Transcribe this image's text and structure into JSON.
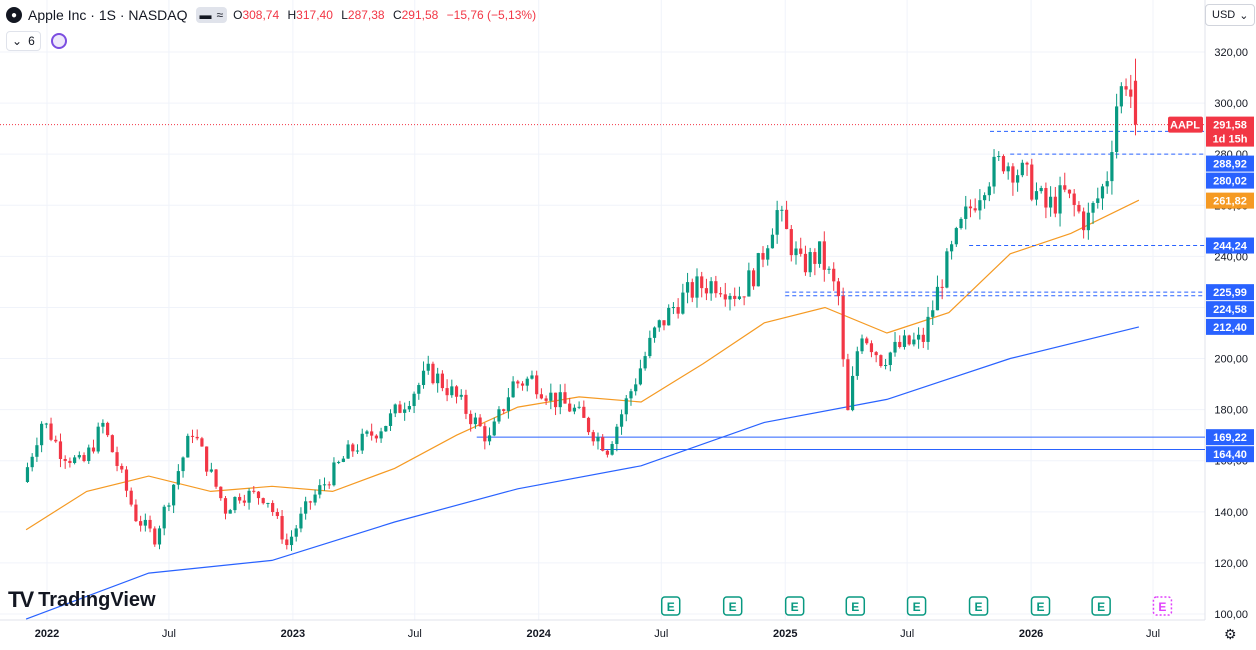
{
  "header": {
    "logo_icon": "apple-logo-icon",
    "symbol_line": "Apple Inc · 1S · NASDAQ",
    "open_label": "O",
    "open_value": "308,74",
    "high_label": "H",
    "high_value": "317,40",
    "low_label": "L",
    "low_value": "287,38",
    "close_label": "C",
    "close_value": "291,58",
    "change": "−15,76 (−5,13%)"
  },
  "toolbar": {
    "indicator_count": "6",
    "currency": "USD"
  },
  "brand": {
    "name": "TradingView"
  },
  "colors": {
    "up": "#089981",
    "down": "#f23645",
    "ma50": "#f59a23",
    "ma200": "#2962ff",
    "level": "#2962ff"
  },
  "chart_data": {
    "type": "candlestick",
    "y_axis": {
      "min": 100,
      "max": 320,
      "ticks": [
        "100,00",
        "120,00",
        "140,00",
        "160,00",
        "180,00",
        "200,00",
        "220,00",
        "240,00",
        "260,00",
        "280,00",
        "300,00",
        "320,00"
      ]
    },
    "x_axis": {
      "ticks": [
        "2022",
        "Jul",
        "2023",
        "Jul",
        "2024",
        "Jul",
        "2025",
        "Jul",
        "2026",
        "Jul"
      ],
      "start": "2022-01-01",
      "end": "2026-08-31"
    },
    "price_path": [
      [
        "2021-12-01",
        150
      ],
      [
        "2022-01-01",
        176
      ],
      [
        "2022-01-28",
        164
      ],
      [
        "2022-03-01",
        158
      ],
      [
        "2022-04-01",
        174
      ],
      [
        "2022-05-20",
        138
      ],
      [
        "2022-06-17",
        130
      ],
      [
        "2022-08-12",
        172
      ],
      [
        "2022-09-30",
        141
      ],
      [
        "2022-10-21",
        147
      ],
      [
        "2022-11-30",
        146
      ],
      [
        "2022-12-30",
        127
      ],
      [
        "2023-01-31",
        143
      ],
      [
        "2023-03-31",
        163
      ],
      [
        "2023-05-31",
        176
      ],
      [
        "2023-07-31",
        195
      ],
      [
        "2023-08-31",
        187
      ],
      [
        "2023-10-27",
        168
      ],
      [
        "2023-11-30",
        190
      ],
      [
        "2023-12-29",
        192
      ],
      [
        "2024-01-31",
        184
      ],
      [
        "2024-02-29",
        180
      ],
      [
        "2024-03-29",
        171
      ],
      [
        "2024-04-19",
        165
      ],
      [
        "2024-05-31",
        192
      ],
      [
        "2024-06-28",
        210
      ],
      [
        "2024-07-31",
        222
      ],
      [
        "2024-08-30",
        228
      ],
      [
        "2024-09-30",
        230
      ],
      [
        "2024-10-31",
        225
      ],
      [
        "2024-11-29",
        236
      ],
      [
        "2024-12-26",
        258
      ],
      [
        "2025-01-31",
        236
      ],
      [
        "2025-02-28",
        241
      ],
      [
        "2025-03-31",
        222
      ],
      [
        "2025-04-08",
        173
      ],
      [
        "2025-04-30",
        212
      ],
      [
        "2025-05-30",
        200
      ],
      [
        "2025-06-30",
        205
      ],
      [
        "2025-07-31",
        207
      ],
      [
        "2025-08-29",
        232
      ],
      [
        "2025-09-30",
        254
      ],
      [
        "2025-10-31",
        270
      ],
      [
        "2025-11-28",
        278
      ],
      [
        "2025-12-31",
        271
      ],
      [
        "2026-01-30",
        259
      ],
      [
        "2026-02-27",
        264
      ],
      [
        "2026-03-31",
        253
      ],
      [
        "2026-04-30",
        270
      ],
      [
        "2026-05-15",
        300
      ],
      [
        "2026-06-01",
        312
      ],
      [
        "2026-06-10",
        291.58
      ]
    ],
    "series": [
      {
        "name": "AAPL",
        "last_value": "291,58",
        "countdown": "1d 15h"
      },
      {
        "ma50_path": [
          [
            "2021-12-01",
            133
          ],
          [
            "2022-03-01",
            148
          ],
          [
            "2022-06-01",
            154
          ],
          [
            "2022-09-01",
            148
          ],
          [
            "2022-12-01",
            150
          ],
          [
            "2023-03-01",
            148
          ],
          [
            "2023-06-01",
            157
          ],
          [
            "2023-09-01",
            170
          ],
          [
            "2023-12-01",
            181
          ],
          [
            "2024-03-01",
            185
          ],
          [
            "2024-06-01",
            183
          ],
          [
            "2024-09-01",
            198
          ],
          [
            "2024-12-01",
            214
          ],
          [
            "2025-03-01",
            220
          ],
          [
            "2025-06-01",
            210
          ],
          [
            "2025-09-01",
            218
          ],
          [
            "2025-12-01",
            241
          ],
          [
            "2026-03-01",
            249
          ],
          [
            "2026-06-10",
            262
          ]
        ],
        "label": "261,82"
      },
      {
        "ma200_path": [
          [
            "2021-12-01",
            98
          ],
          [
            "2022-06-01",
            116
          ],
          [
            "2022-12-01",
            121
          ],
          [
            "2023-06-01",
            136
          ],
          [
            "2023-12-01",
            149
          ],
          [
            "2024-06-01",
            158
          ],
          [
            "2024-12-01",
            175
          ],
          [
            "2025-06-01",
            184
          ],
          [
            "2025-12-01",
            200
          ],
          [
            "2026-06-10",
            212.4
          ]
        ],
        "label": "212,40"
      }
    ],
    "levels": [
      {
        "value": 169.22,
        "label": "169,22",
        "style": "solid",
        "from": "2023-10-01"
      },
      {
        "value": 164.4,
        "label": "164,40",
        "style": "solid",
        "from": "2024-04-01"
      },
      {
        "value": 288.92,
        "label": "288,92",
        "style": "dashed",
        "from": "2025-11-01"
      },
      {
        "value": 280.02,
        "label": "280,02",
        "style": "dashed",
        "from": "2025-12-01"
      },
      {
        "value": 244.24,
        "label": "244,24",
        "style": "dashed",
        "from": "2025-10-01"
      },
      {
        "value": 225.99,
        "label": "225,99",
        "style": "dashed",
        "from": "2025-01-01"
      },
      {
        "value": 224.58,
        "label": "224,58",
        "style": "dashed",
        "from": "2025-01-01"
      }
    ],
    "current_price": {
      "value": 291.58,
      "label": "291,58",
      "symbol_tag": "AAPL"
    },
    "events": {
      "marker": "E",
      "dates": [
        "2024-07-15",
        "2024-10-15",
        "2025-01-15",
        "2025-04-15",
        "2025-07-15",
        "2025-10-15",
        "2026-01-15",
        "2026-04-15"
      ],
      "upcoming": "2026-07-15"
    }
  }
}
